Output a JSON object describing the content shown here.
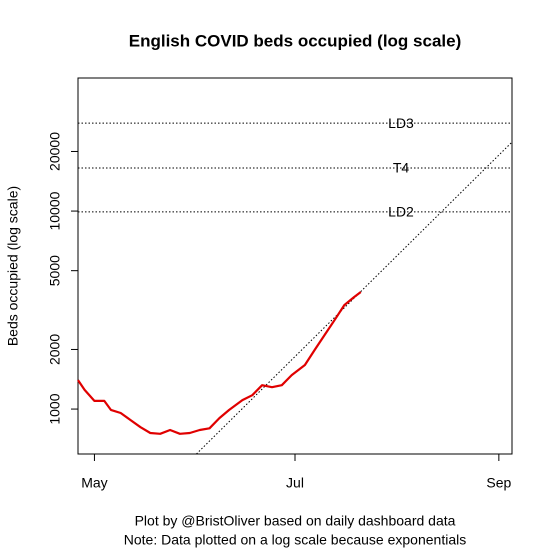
{
  "chart_data": {
    "type": "line",
    "title": "English COVID beds occupied (log scale)",
    "y_label": "Beds occupied (log scale)",
    "footer": [
      "Plot by @BristOliver based on daily dashboard data",
      "Note: Data plotted on a log scale because exponentials"
    ],
    "ylog": true,
    "ylim": [
      593,
      47000
    ],
    "yticks": [
      1000,
      2000,
      5000,
      10000,
      20000
    ],
    "xlim": [
      116,
      248
    ],
    "xticks": [
      {
        "value": 121,
        "label": "May"
      },
      {
        "value": 182,
        "label": "Jul"
      },
      {
        "value": 244,
        "label": "Sep"
      }
    ],
    "series": [
      {
        "color": "#e00000",
        "x": [
          116,
          118,
          121,
          124,
          126,
          129,
          132,
          135,
          138,
          141,
          144,
          147,
          150,
          153,
          156,
          159,
          162,
          166,
          169,
          172,
          175,
          178,
          181,
          185,
          188,
          191,
          194,
          197,
          200,
          202
        ],
        "values": [
          1400,
          1250,
          1100,
          1100,
          990,
          955,
          880,
          810,
          757,
          750,
          784,
          750,
          757,
          784,
          800,
          900,
          990,
          1110,
          1175,
          1320,
          1290,
          1320,
          1485,
          1670,
          1990,
          2365,
          2810,
          3350,
          3680,
          3900
        ]
      }
    ],
    "trend": {
      "x": [
        152,
        248
      ],
      "values": [
        593,
        22300
      ]
    },
    "reference_lines": [
      {
        "label": "LD3",
        "value": 27800
      },
      {
        "label": "T4",
        "value": 16500
      },
      {
        "label": "LD2",
        "value": 9900
      }
    ]
  }
}
